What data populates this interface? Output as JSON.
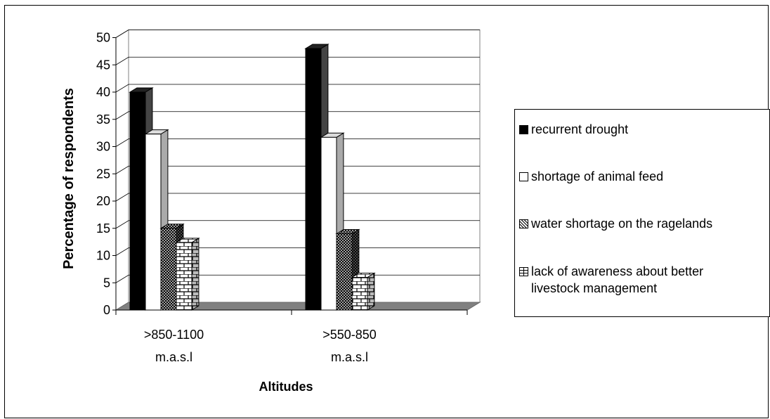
{
  "chart_data": {
    "type": "bar",
    "ylabel": "Percentage of respondents",
    "xlabel": "Altitudes",
    "ylim": [
      0,
      50
    ],
    "yticks": [
      0,
      5,
      10,
      15,
      20,
      25,
      30,
      35,
      40,
      45,
      50
    ],
    "categories": [
      ">850-1100\nm.a.s.l",
      ">550-850\nm.a.s.l"
    ],
    "series": [
      {
        "name": "recurrent drought",
        "values": [
          40,
          48
        ],
        "color": "#000000",
        "pattern": "solid-black"
      },
      {
        "name": "shortage of animal feed",
        "values": [
          32.3,
          31.7
        ],
        "color": "#ffffff",
        "pattern": "solid-white"
      },
      {
        "name": "water shortage on the ragelands",
        "values": [
          15,
          14
        ],
        "color": "#000000",
        "pattern": "crosshatch"
      },
      {
        "name": "lack of awareness about better\nlivestock management",
        "values": [
          12.4,
          6
        ],
        "color": "#000000",
        "pattern": "brick"
      }
    ],
    "legend_position": "right",
    "grid": true,
    "style": "3d-clustered-column"
  }
}
